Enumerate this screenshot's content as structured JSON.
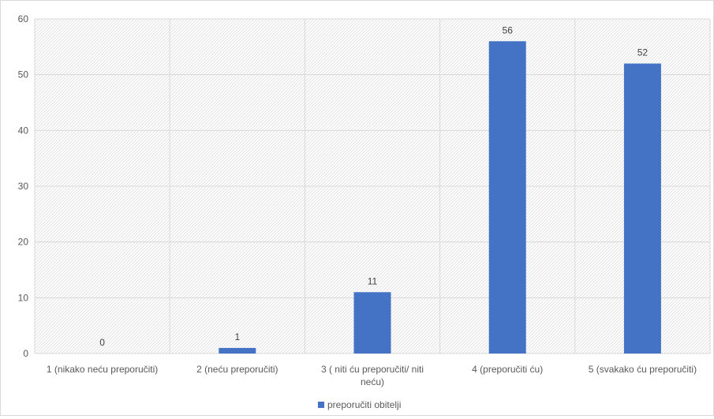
{
  "chart_data": {
    "type": "bar",
    "title": "",
    "xlabel": "",
    "ylabel": "",
    "categories": [
      [
        "1 (nikako neću preporučiti)"
      ],
      [
        "2 (neću preporučiti)"
      ],
      [
        "3 ( niti ću preporučiti/ niti",
        "neću)"
      ],
      [
        "4 (preporučiti ću)"
      ],
      [
        "5 (svakako ću preporučiti)"
      ]
    ],
    "series": [
      {
        "name": "preporučiti obitelji",
        "values": [
          0,
          1,
          11,
          56,
          52
        ]
      }
    ],
    "data_labels": [
      "0",
      "1",
      "11",
      "56",
      "52"
    ],
    "ylim": [
      0,
      60
    ],
    "yticks": [
      "0",
      "10",
      "20",
      "30",
      "40",
      "50",
      "60"
    ],
    "grid": true,
    "legend_position": "bottom",
    "colors": {
      "bar": "#4472c4",
      "grid": "#d9d9d9",
      "text": "#595959",
      "plot_pattern": "#e4e4e4"
    }
  }
}
